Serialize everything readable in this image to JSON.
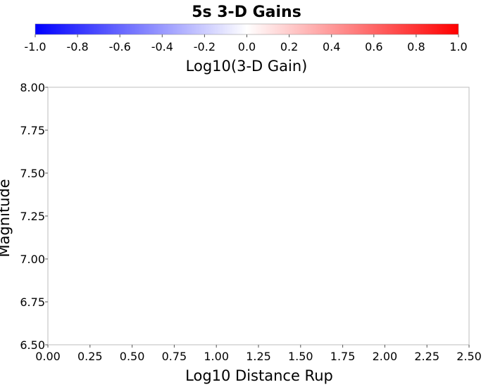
{
  "chart_data": {
    "type": "heatmap",
    "title": "5s 3-D Gains",
    "xlabel": "Log10 Distance Rup",
    "ylabel": "Magnitude",
    "xlim": [
      0.0,
      2.5
    ],
    "ylim": [
      6.5,
      8.0
    ],
    "x_ticks": [
      "0.00",
      "0.25",
      "0.50",
      "0.75",
      "1.00",
      "1.25",
      "1.50",
      "1.75",
      "2.00",
      "2.25",
      "2.50"
    ],
    "y_ticks": [
      "6.50",
      "6.75",
      "7.00",
      "7.25",
      "7.50",
      "7.75",
      "8.00"
    ],
    "grid": false,
    "points": [],
    "colorbar": {
      "label": "Log10(3-D Gain)",
      "range": [
        -1.0,
        1.0
      ],
      "ticks": [
        "-1.0",
        "-0.8",
        "-0.6",
        "-0.4",
        "-0.2",
        "0.0",
        "0.2",
        "0.4",
        "0.6",
        "0.8",
        "1.0"
      ],
      "colors": [
        "#0000ff",
        "#ffffff",
        "#ff0000"
      ]
    }
  }
}
